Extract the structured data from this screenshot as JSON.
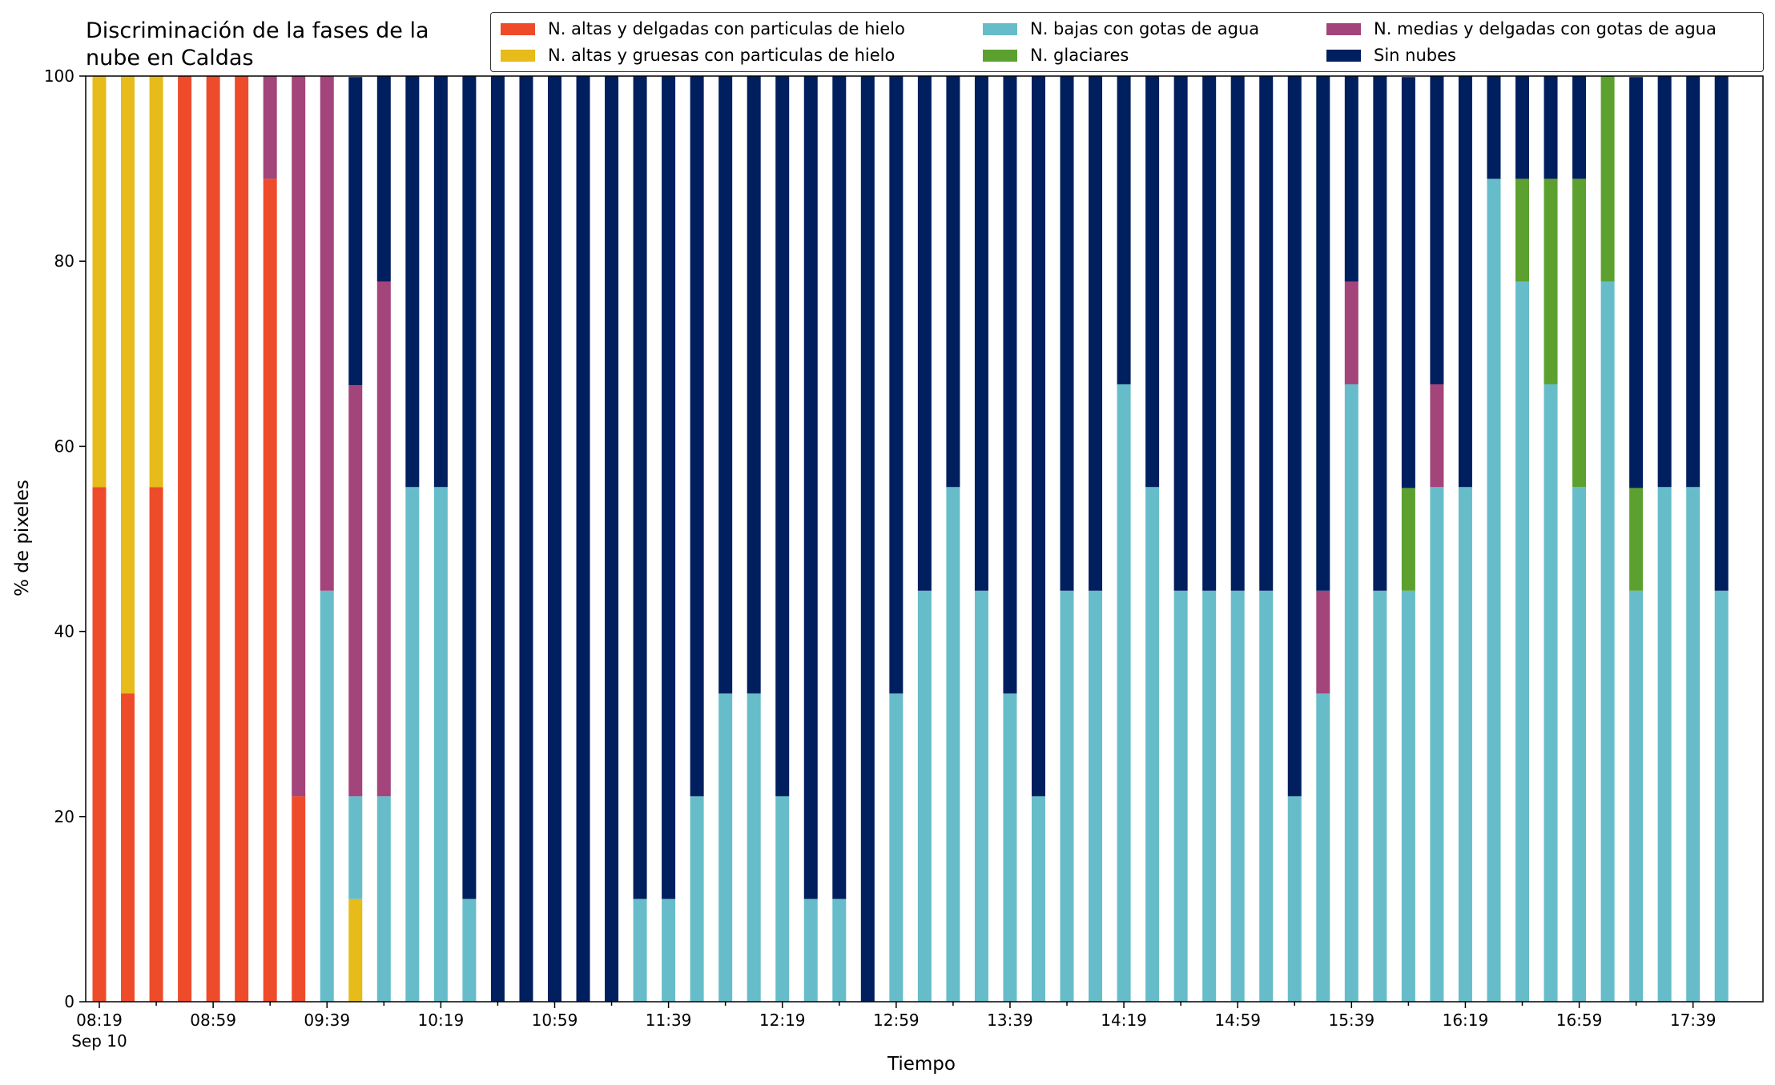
{
  "title_line1": "Discriminación de la fases de la",
  "title_line2": "nube en Caldas",
  "xlabel": "Tiempo",
  "ylabel": "% de pixeles",
  "colors": {
    "alta_delgada": "#ee4b2b",
    "alta_gruesa": "#e6bb1a",
    "baja_agua": "#66bdc9",
    "media_agua": "#a3447a",
    "glaciar": "#5ca12f",
    "sin_nubes": "#001f5f"
  },
  "legend": [
    {
      "key": "alta_delgada",
      "label": "N. altas y delgadas con particulas de hielo"
    },
    {
      "key": "alta_gruesa",
      "label": "N. altas y gruesas con particulas de hielo"
    },
    {
      "key": "baja_agua",
      "label": "N. bajas con gotas de agua"
    },
    {
      "key": "glaciar",
      "label": "N. glaciares"
    },
    {
      "key": "media_agua",
      "label": "N. medias y delgadas con gotas de agua"
    },
    {
      "key": "sin_nubes",
      "label": "Sin nubes"
    }
  ],
  "chart_data": {
    "type": "bar",
    "stacked": true,
    "title": "Discriminación de la fases de la nube en Caldas",
    "xlabel": "Tiempo",
    "ylabel": "% de pixeles",
    "ylim": [
      0,
      100
    ],
    "yticks": [
      0,
      20,
      40,
      60,
      80,
      100
    ],
    "xtick_labels": [
      "08:19",
      "08:59",
      "09:39",
      "10:19",
      "10:59",
      "11:39",
      "12:19",
      "12:59",
      "13:39",
      "14:19",
      "14:59",
      "15:39",
      "16:19",
      "16:59",
      "17:39"
    ],
    "xtick_sublabel": "Sep 10",
    "times": [
      "08:19",
      "08:29",
      "08:39",
      "08:49",
      "08:59",
      "09:09",
      "09:19",
      "09:29",
      "09:39",
      "09:49",
      "09:59",
      "10:09",
      "10:19",
      "10:29",
      "10:39",
      "10:49",
      "10:59",
      "11:09",
      "11:19",
      "11:29",
      "11:39",
      "11:49",
      "11:59",
      "12:09",
      "12:19",
      "12:29",
      "12:39",
      "12:49",
      "12:59",
      "13:09",
      "13:19",
      "13:29",
      "13:39",
      "13:49",
      "13:59",
      "14:09",
      "14:19",
      "14:29",
      "14:39",
      "14:49",
      "14:59",
      "15:09",
      "15:19",
      "15:29",
      "15:39",
      "15:49",
      "15:59",
      "16:09",
      "16:19",
      "16:29",
      "16:39",
      "16:49",
      "16:59",
      "17:09",
      "17:19",
      "17:29",
      "17:39",
      "17:49"
    ],
    "series_order": [
      "alta_delgada",
      "alta_gruesa",
      "baja_agua",
      "media_agua",
      "glaciar",
      "sin_nubes"
    ],
    "series": [
      {
        "key": "alta_delgada",
        "name": "N. altas y delgadas con particulas de hielo",
        "values": [
          55.6,
          33.3,
          55.6,
          100,
          100,
          100,
          88.9,
          22.2,
          0,
          0,
          0,
          0,
          0,
          0,
          0,
          0,
          0,
          0,
          0,
          0,
          0,
          0,
          0,
          0,
          0,
          0,
          0,
          0,
          0,
          0,
          0,
          0,
          0,
          0,
          0,
          0,
          0,
          0,
          0,
          0,
          0,
          0,
          0,
          0,
          0,
          0,
          0,
          0,
          0,
          0,
          0,
          0,
          0,
          0,
          0,
          0,
          0,
          0
        ]
      },
      {
        "key": "alta_gruesa",
        "name": "N. altas y gruesas con particulas de hielo",
        "values": [
          44.4,
          66.7,
          44.4,
          0,
          0,
          0,
          0,
          0,
          0,
          11.1,
          0,
          0,
          0,
          0,
          0,
          0,
          0,
          0,
          0,
          0,
          0,
          0,
          0,
          0,
          0,
          0,
          0,
          0,
          0,
          0,
          0,
          0,
          0,
          0,
          0,
          0,
          0,
          0,
          0,
          0,
          0,
          0,
          0,
          0,
          0,
          0,
          0,
          0,
          0,
          0,
          0,
          0,
          0,
          0,
          0,
          0,
          0,
          0
        ]
      },
      {
        "key": "baja_agua",
        "name": "N. bajas con gotas de agua",
        "values": [
          0,
          0,
          0,
          0,
          0,
          0,
          0,
          0,
          44.4,
          11.1,
          22.2,
          55.6,
          55.6,
          11.1,
          0,
          0,
          0,
          0,
          0,
          11.1,
          11.1,
          22.2,
          33.3,
          33.3,
          22.2,
          11.1,
          11.1,
          0,
          33.3,
          44.4,
          55.6,
          44.4,
          33.3,
          22.2,
          44.4,
          44.4,
          66.7,
          55.6,
          44.4,
          44.4,
          44.4,
          44.4,
          22.2,
          33.3,
          66.7,
          44.4,
          44.4,
          55.6,
          55.6,
          88.9,
          77.8,
          66.7,
          55.6,
          77.8,
          44.4,
          55.6,
          55.6,
          44.4
        ]
      },
      {
        "key": "media_agua",
        "name": "N. medias y delgadas con gotas de agua",
        "values": [
          0,
          0,
          0,
          0,
          0,
          0,
          11.1,
          77.8,
          55.6,
          44.4,
          55.6,
          0,
          0,
          0,
          0,
          0,
          0,
          0,
          0,
          0,
          0,
          0,
          0,
          0,
          0,
          0,
          0,
          0,
          0,
          0,
          0,
          0,
          0,
          0,
          0,
          0,
          0,
          0,
          0,
          0,
          0,
          0,
          0,
          11.1,
          11.1,
          0,
          0,
          11.1,
          0,
          0,
          0,
          0,
          0,
          0,
          0,
          0,
          0,
          0
        ]
      },
      {
        "key": "glaciar",
        "name": "N. glaciares",
        "values": [
          0,
          0,
          0,
          0,
          0,
          0,
          0,
          0,
          0,
          0,
          0,
          0,
          0,
          0,
          0,
          0,
          0,
          0,
          0,
          0,
          0,
          0,
          0,
          0,
          0,
          0,
          0,
          0,
          0,
          0,
          0,
          0,
          0,
          0,
          0,
          0,
          0,
          0,
          0,
          0,
          0,
          0,
          0,
          0,
          0,
          0,
          11.1,
          0,
          0,
          0,
          11.1,
          22.2,
          33.3,
          22.2,
          11.1,
          0,
          0,
          0
        ]
      },
      {
        "key": "sin_nubes",
        "name": "Sin nubes",
        "values": [
          0,
          0,
          0,
          0,
          0,
          0,
          0,
          0,
          0,
          33.3,
          22.2,
          44.4,
          44.4,
          88.9,
          100,
          100,
          100,
          100,
          100,
          88.9,
          88.9,
          77.8,
          66.7,
          66.7,
          77.8,
          88.9,
          88.9,
          100,
          66.7,
          55.6,
          44.4,
          55.6,
          66.7,
          77.8,
          55.6,
          55.6,
          33.3,
          44.4,
          55.6,
          55.6,
          55.6,
          55.6,
          77.8,
          55.6,
          22.2,
          55.6,
          44.4,
          33.3,
          44.4,
          11.1,
          11.1,
          11.1,
          11.1,
          0,
          44.4,
          44.4,
          44.4,
          55.6
        ]
      }
    ]
  }
}
